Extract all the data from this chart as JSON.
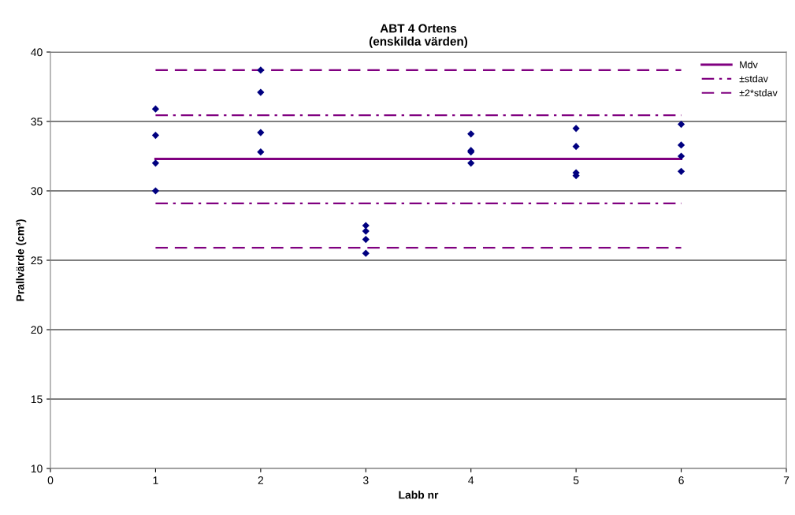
{
  "chart_data": {
    "type": "scatter",
    "title": "ABT 4 Ortens\n(enskilda värden)",
    "xlabel": "Labb nr",
    "ylabel": "Prallvärde (cm³)",
    "xlim": [
      0,
      7
    ],
    "xticks": [
      0,
      1,
      2,
      3,
      4,
      5,
      6,
      7
    ],
    "ylim": [
      10,
      40
    ],
    "yticks": [
      10,
      15,
      20,
      25,
      30,
      35,
      40
    ],
    "grid": "y",
    "legend": "top right",
    "series": [
      {
        "color": "#000080",
        "marker": "diamond",
        "x": [
          1,
          1,
          1,
          1,
          2,
          2,
          2,
          2,
          3,
          3,
          3,
          3,
          4,
          4,
          4,
          4,
          5,
          5,
          5,
          5,
          6,
          6,
          6,
          6
        ],
        "values": [
          35.9,
          34.0,
          32.0,
          30.0,
          38.7,
          37.1,
          34.2,
          32.8,
          27.5,
          27.1,
          26.5,
          25.5,
          34.1,
          32.9,
          32.8,
          32.0,
          34.5,
          33.2,
          31.3,
          31.1,
          34.8,
          33.3,
          32.5,
          31.4
        ]
      },
      {
        "type": "line",
        "name": "Mdv",
        "color": "#800080",
        "line_style": "solid",
        "x": [
          1,
          6
        ],
        "values": [
          32.3,
          32.3
        ]
      },
      {
        "type": "line",
        "name": "±stdav",
        "color": "#800080",
        "line_style": "dashdot",
        "x": [
          1,
          6
        ],
        "values": [
          35.45,
          35.45
        ]
      },
      {
        "type": "line",
        "name": "±2*stdav",
        "color": "#800080",
        "line_style": "dashed",
        "x": [
          1,
          6
        ],
        "values": [
          38.7,
          38.7
        ]
      },
      {
        "type": "line",
        "color": "#800080",
        "line_style": "dashdot",
        "x": [
          1,
          6
        ],
        "values": [
          29.1,
          29.1
        ]
      },
      {
        "type": "line",
        "color": "#800080",
        "line_style": "dashed",
        "x": [
          1,
          6
        ],
        "values": [
          25.9,
          25.9
        ]
      }
    ]
  }
}
